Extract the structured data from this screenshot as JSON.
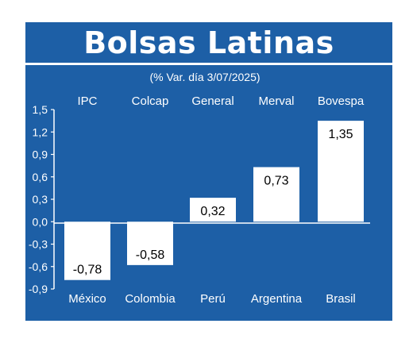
{
  "colors": {
    "panel": "#1d5fa6",
    "bar": "#ffffff",
    "text": "#ffffff",
    "bar_label": "#000000"
  },
  "chart_data": {
    "type": "bar",
    "title": "Bolsas Latinas",
    "subtitle": "(% Var. día 3/07/2025)",
    "index_names": [
      "IPC",
      "Colcap",
      "General",
      "Merval",
      "Bovespa"
    ],
    "categories": [
      "México",
      "Colombia",
      "Perú",
      "Argentina",
      "Brasil"
    ],
    "values": [
      -0.78,
      -0.58,
      0.32,
      0.73,
      1.35
    ],
    "value_labels": [
      "-0,78",
      "-0,58",
      "0,32",
      "0,73",
      "1,35"
    ],
    "ylim": [
      -0.9,
      1.5
    ],
    "yticks": [
      -0.9,
      -0.6,
      -0.3,
      0.0,
      0.3,
      0.6,
      0.9,
      1.2,
      1.5
    ],
    "ytick_labels": [
      "-0,9",
      "-0,6",
      "-0,3",
      "0,0",
      "0,3",
      "0,6",
      "0,9",
      "1,2",
      "1,5"
    ],
    "grid": false,
    "legend": "none"
  }
}
